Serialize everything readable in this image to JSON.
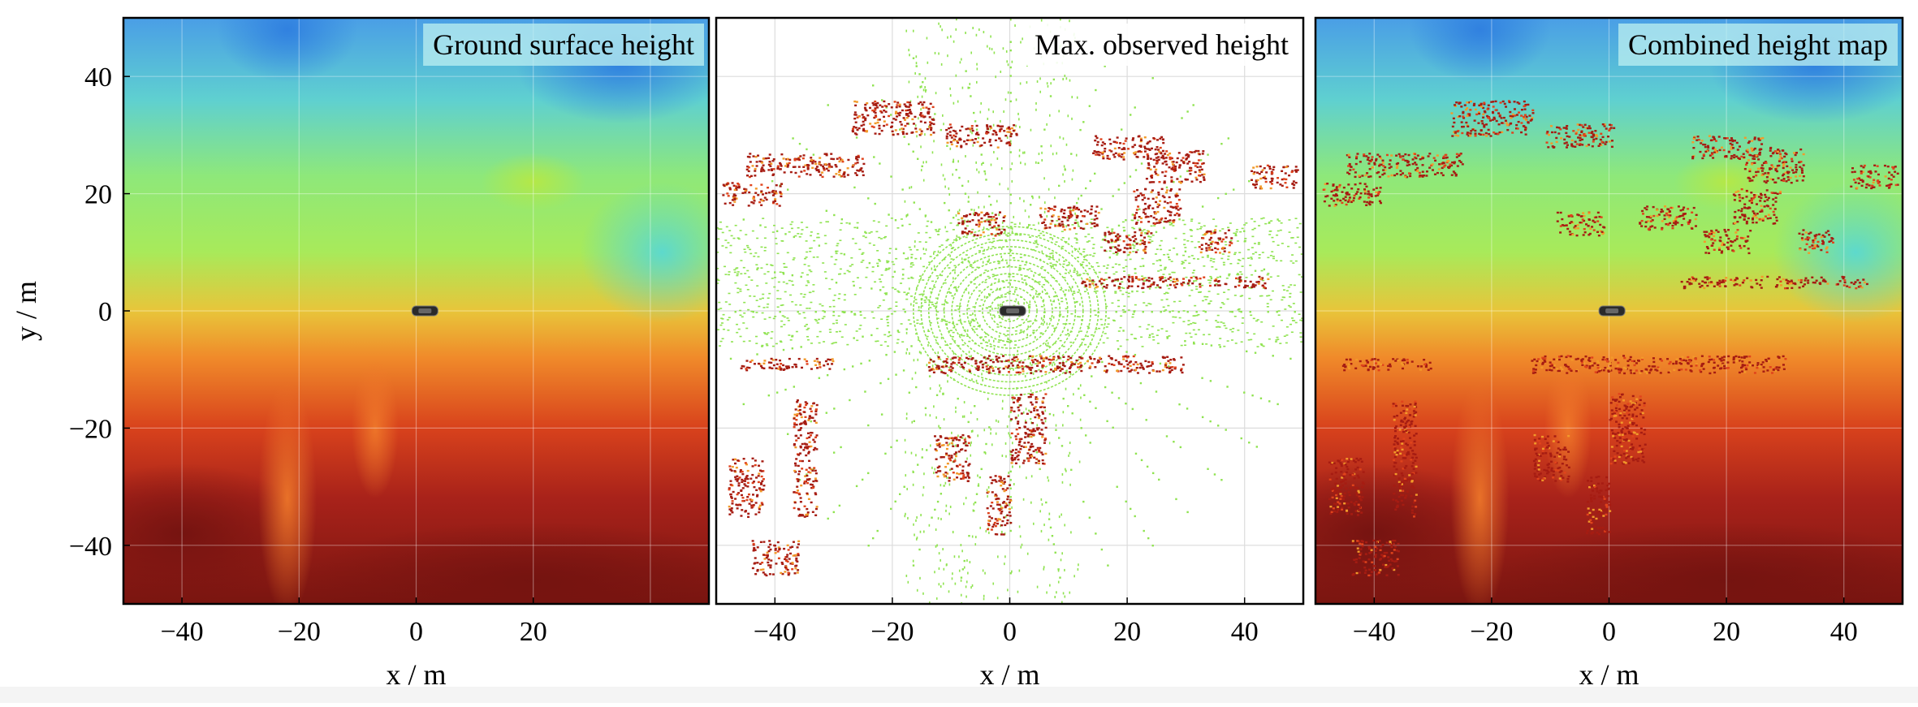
{
  "chart_data": [
    {
      "type": "heatmap",
      "title": "Ground surface height",
      "xlabel": "x / m",
      "ylabel": "y / m",
      "xlim": [
        -50,
        50
      ],
      "ylim": [
        -50,
        50
      ],
      "x_ticks": [
        "-40",
        "-20",
        "0",
        "20"
      ],
      "y_ticks": [
        "40",
        "20",
        "0",
        "-20",
        "-40"
      ],
      "grid": true,
      "title_placement": "top-right",
      "vehicle_position": [
        1.5,
        0
      ]
    },
    {
      "type": "scatter",
      "title": "Max. observed height",
      "xlabel": "x / m",
      "xlim": [
        -50,
        50
      ],
      "ylim": [
        -50,
        50
      ],
      "x_ticks": [
        "-40",
        "-20",
        "0",
        "20",
        "40"
      ],
      "grid": true,
      "title_placement": "top-right",
      "vehicle_position": [
        0.5,
        0
      ]
    },
    {
      "type": "heatmap",
      "title": "Combined height map",
      "xlabel": "x / m",
      "xlim": [
        -50,
        50
      ],
      "ylim": [
        -50,
        50
      ],
      "x_ticks": [
        "-40",
        "-20",
        "0",
        "20",
        "40"
      ],
      "grid": true,
      "title_placement": "top-right",
      "vehicle_position": [
        0.5,
        0
      ]
    }
  ],
  "colors": {
    "low": "#2f7fe0",
    "mid": "#8be86a",
    "high": "#7a1510",
    "points": "#8fe350"
  }
}
